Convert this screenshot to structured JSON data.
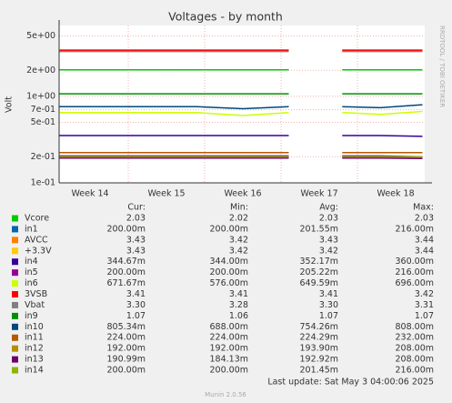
{
  "chart_data": {
    "type": "line",
    "title": "Voltages - by month",
    "ylabel": "Volt",
    "side_note": "RRDTOOL / TOBI OETIKER",
    "log_y": true,
    "grid": true,
    "x": [
      14.1,
      14.7,
      15.3,
      15.9,
      16.5,
      17.1,
      17.72,
      17.8,
      18.3,
      18.85
    ],
    "xlim": [
      14.095,
      18.88
    ],
    "xticks": [
      {
        "value": 14.5,
        "label": "Week 14"
      },
      {
        "value": 15.5,
        "label": "Week 15"
      },
      {
        "value": 16.5,
        "label": "Week 16"
      },
      {
        "value": 17.5,
        "label": "Week 17"
      },
      {
        "value": 18.5,
        "label": "Week 18"
      }
    ],
    "ylim": [
      0.1,
      6.6
    ],
    "yticks": [
      {
        "value": 0.1,
        "label": "1e-01"
      },
      {
        "value": 0.2,
        "label": "2e-01"
      },
      {
        "value": 0.5,
        "label": "5e-01"
      },
      {
        "value": 0.7,
        "label": "7e-01"
      },
      {
        "value": 1,
        "label": "1e+00"
      },
      {
        "value": 2,
        "label": "2e+00"
      },
      {
        "value": 5,
        "label": "5e+00"
      }
    ],
    "columns": [
      "Cur:",
      "Min:",
      "Avg:",
      "Max:"
    ],
    "series": [
      {
        "name": "Vcore",
        "color": "#00cc00",
        "values": [
          2.03,
          2.03,
          2.03,
          2.03,
          2.03,
          2.03,
          null,
          2.03,
          2.03,
          2.03
        ],
        "stats": [
          "2.03",
          "2.02",
          "2.03",
          "2.03"
        ]
      },
      {
        "name": "in1",
        "color": "#0066b3",
        "values": [
          0.2,
          0.2,
          0.2,
          0.2,
          0.2,
          0.2,
          null,
          0.2,
          0.2,
          0.2
        ],
        "stats": [
          "200.00m",
          "200.00m",
          "201.55m",
          "216.00m"
        ]
      },
      {
        "name": "AVCC",
        "color": "#ff8000",
        "values": [
          3.43,
          3.43,
          3.43,
          3.43,
          3.43,
          3.43,
          null,
          3.43,
          3.43,
          3.43
        ],
        "stats": [
          "3.43",
          "3.42",
          "3.43",
          "3.44"
        ]
      },
      {
        "name": "+3.3V",
        "color": "#ffcc00",
        "values": [
          3.42,
          3.42,
          3.42,
          3.42,
          3.42,
          3.42,
          null,
          3.42,
          3.42,
          3.43
        ],
        "stats": [
          "3.43",
          "3.42",
          "3.42",
          "3.44"
        ]
      },
      {
        "name": "in4",
        "color": "#330099",
        "values": [
          0.352,
          0.352,
          0.352,
          0.352,
          0.352,
          0.352,
          null,
          0.352,
          0.352,
          0.345
        ],
        "stats": [
          "344.67m",
          "344.00m",
          "352.17m",
          "360.00m"
        ]
      },
      {
        "name": "in5",
        "color": "#990099",
        "values": [
          0.205,
          0.205,
          0.205,
          0.205,
          0.205,
          0.205,
          null,
          0.205,
          0.205,
          0.2
        ],
        "stats": [
          "200.00m",
          "200.00m",
          "205.22m",
          "216.00m"
        ]
      },
      {
        "name": "in6",
        "color": "#ccff00",
        "values": [
          0.65,
          0.65,
          0.65,
          0.65,
          0.6,
          0.65,
          null,
          0.65,
          0.62,
          0.67
        ],
        "stats": [
          "671.67m",
          "576.00m",
          "649.59m",
          "696.00m"
        ]
      },
      {
        "name": "3VSB",
        "color": "#ff0000",
        "values": [
          3.41,
          3.41,
          3.41,
          3.41,
          3.41,
          3.41,
          null,
          3.41,
          3.41,
          3.41
        ],
        "stats": [
          "3.41",
          "3.41",
          "3.41",
          "3.42"
        ]
      },
      {
        "name": "Vbat",
        "color": "#808080",
        "values": [
          3.3,
          3.3,
          3.3,
          3.3,
          3.3,
          3.3,
          null,
          3.3,
          3.3,
          3.3
        ],
        "stats": [
          "3.30",
          "3.28",
          "3.30",
          "3.31"
        ]
      },
      {
        "name": "in9",
        "color": "#008f00",
        "values": [
          1.07,
          1.07,
          1.07,
          1.07,
          1.07,
          1.07,
          null,
          1.07,
          1.07,
          1.07
        ],
        "stats": [
          "1.07",
          "1.06",
          "1.07",
          "1.07"
        ]
      },
      {
        "name": "in10",
        "color": "#00487d",
        "values": [
          0.76,
          0.76,
          0.76,
          0.76,
          0.72,
          0.76,
          null,
          0.76,
          0.74,
          0.8
        ],
        "stats": [
          "805.34m",
          "688.00m",
          "754.26m",
          "808.00m"
        ]
      },
      {
        "name": "in11",
        "color": "#b35a00",
        "values": [
          0.224,
          0.224,
          0.224,
          0.224,
          0.224,
          0.224,
          null,
          0.224,
          0.224,
          0.224
        ],
        "stats": [
          "224.00m",
          "224.00m",
          "224.29m",
          "232.00m"
        ]
      },
      {
        "name": "in12",
        "color": "#b38f00",
        "values": [
          0.194,
          0.194,
          0.194,
          0.194,
          0.2,
          0.194,
          null,
          0.194,
          0.2,
          0.192
        ],
        "stats": [
          "192.00m",
          "192.00m",
          "193.90m",
          "208.00m"
        ]
      },
      {
        "name": "in13",
        "color": "#6b006b",
        "values": [
          0.193,
          0.193,
          0.193,
          0.193,
          0.193,
          0.193,
          null,
          0.193,
          0.193,
          0.191
        ],
        "stats": [
          "190.99m",
          "184.13m",
          "192.92m",
          "208.00m"
        ]
      },
      {
        "name": "in14",
        "color": "#8fb300",
        "values": [
          0.2,
          0.2,
          0.2,
          0.2,
          0.2,
          0.2,
          null,
          0.2,
          0.2,
          0.2
        ],
        "stats": [
          "200.00m",
          "200.00m",
          "201.45m",
          "216.00m"
        ]
      }
    ],
    "last_update": "Last update: Sat May  3 04:00:06 2025",
    "footer": "Munin 2.0.56"
  }
}
